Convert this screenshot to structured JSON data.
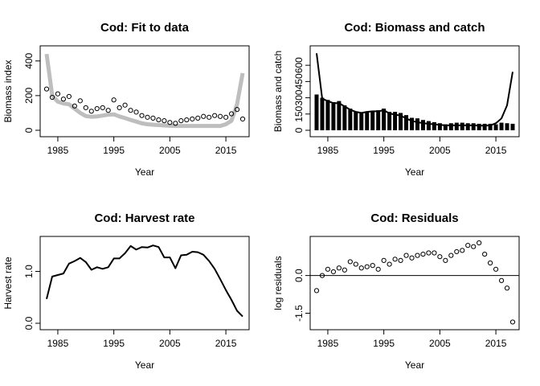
{
  "chart_data": [
    {
      "type": "scatter",
      "title": "Cod: Fit to data",
      "xlabel": "Year",
      "ylabel": "Biomass index",
      "xlim": [
        1983,
        2018
      ],
      "ylim": [
        0,
        450
      ],
      "xticks": [
        1985,
        1995,
        2005,
        2015
      ],
      "yticks": [
        0,
        200,
        400
      ],
      "points": {
        "x": [
          1983,
          1984,
          1985,
          1986,
          1987,
          1988,
          1989,
          1990,
          1991,
          1992,
          1993,
          1994,
          1995,
          1996,
          1997,
          1998,
          1999,
          2000,
          2001,
          2002,
          2003,
          2004,
          2005,
          2006,
          2007,
          2008,
          2009,
          2010,
          2011,
          2012,
          2013,
          2014,
          2015,
          2016,
          2017,
          2018
        ],
        "y": [
          238,
          190,
          210,
          180,
          195,
          140,
          170,
          130,
          110,
          125,
          130,
          115,
          175,
          130,
          145,
          115,
          105,
          85,
          75,
          70,
          60,
          55,
          45,
          40,
          55,
          60,
          65,
          70,
          80,
          75,
          85,
          80,
          75,
          95,
          120,
          65
        ]
      },
      "fit_line": {
        "x": [
          1983,
          1984,
          1985,
          1986,
          1987,
          1988,
          1989,
          1990,
          1991,
          1992,
          1993,
          1994,
          1995,
          1996,
          1997,
          1998,
          1999,
          2000,
          2001,
          2002,
          2003,
          2004,
          2005,
          2006,
          2007,
          2008,
          2009,
          2010,
          2011,
          2012,
          2013,
          2014,
          2015,
          2016,
          2017,
          2018
        ],
        "y": [
          440,
          200,
          165,
          155,
          150,
          125,
          100,
          82,
          78,
          80,
          85,
          90,
          92,
          80,
          70,
          60,
          50,
          40,
          35,
          32,
          30,
          28,
          26,
          25,
          25,
          25,
          25,
          25,
          25,
          25,
          25,
          25,
          35,
          55,
          150,
          330
        ]
      }
    },
    {
      "type": "bar",
      "title": "Cod: Biomass and catch",
      "xlabel": "Year",
      "ylabel": "Biomass and catch",
      "xlim": [
        1983,
        2018
      ],
      "ylim": [
        0,
        720
      ],
      "xticks": [
        1985,
        1995,
        2005,
        2015
      ],
      "yticks": [
        0,
        150,
        300,
        450,
        600
      ],
      "catch": {
        "x": [
          1983,
          1984,
          1985,
          1986,
          1987,
          1988,
          1989,
          1990,
          1991,
          1992,
          1993,
          1994,
          1995,
          1996,
          1997,
          1998,
          1999,
          2000,
          2001,
          2002,
          2003,
          2004,
          2005,
          2006,
          2007,
          2008,
          2009,
          2010,
          2011,
          2012,
          2013,
          2014,
          2015,
          2016,
          2017,
          2018
        ],
        "y": [
          330,
          300,
          280,
          260,
          270,
          230,
          200,
          175,
          165,
          175,
          180,
          185,
          200,
          170,
          170,
          160,
          140,
          115,
          110,
          95,
          85,
          75,
          65,
          55,
          65,
          70,
          70,
          65,
          65,
          60,
          60,
          60,
          55,
          70,
          65,
          60
        ]
      },
      "biomass": {
        "x": [
          1983,
          1984,
          1985,
          1986,
          1987,
          1988,
          1989,
          1990,
          1991,
          1992,
          1993,
          1994,
          1995,
          1996,
          1997,
          1998,
          1999,
          2000,
          2001,
          2002,
          2003,
          2004,
          2005,
          2006,
          2007,
          2008,
          2009,
          2010,
          2011,
          2012,
          2013,
          2014,
          2015,
          2016,
          2017,
          2018
        ],
        "y": [
          710,
          290,
          270,
          250,
          250,
          220,
          190,
          170,
          160,
          170,
          175,
          175,
          185,
          155,
          145,
          135,
          110,
          85,
          75,
          65,
          60,
          55,
          50,
          45,
          45,
          45,
          45,
          45,
          45,
          42,
          42,
          45,
          65,
          110,
          230,
          540
        ]
      }
    },
    {
      "type": "line",
      "title": "Cod: Harvest rate",
      "xlabel": "Year",
      "ylabel": "Harvest rate",
      "xlim": [
        1983,
        2018
      ],
      "ylim": [
        0,
        1.55
      ],
      "xticks": [
        1985,
        1995,
        2005,
        2015
      ],
      "yticks": [
        0.0,
        1.0
      ],
      "ytick_labels": [
        "0.0",
        "1.0"
      ],
      "x": [
        1983,
        1984,
        1985,
        1986,
        1987,
        1988,
        1989,
        1990,
        1991,
        1992,
        1993,
        1994,
        1995,
        1996,
        1997,
        1998,
        1999,
        2000,
        2001,
        2002,
        2003,
        2004,
        2005,
        2006,
        2007,
        2008,
        2009,
        2010,
        2011,
        2012,
        2013,
        2014,
        2015,
        2016,
        2017,
        2018
      ],
      "y": [
        0.47,
        0.9,
        0.93,
        0.96,
        1.15,
        1.2,
        1.26,
        1.18,
        1.03,
        1.08,
        1.05,
        1.08,
        1.25,
        1.25,
        1.35,
        1.49,
        1.42,
        1.47,
        1.46,
        1.5,
        1.47,
        1.27,
        1.27,
        1.06,
        1.31,
        1.32,
        1.38,
        1.37,
        1.32,
        1.2,
        1.05,
        0.85,
        0.64,
        0.45,
        0.24,
        0.13
      ]
    },
    {
      "type": "scatter",
      "title": "Cod: Residuals",
      "xlabel": "Year",
      "ylabel": "log residuals",
      "xlim": [
        1983,
        2018
      ],
      "ylim": [
        -1.9,
        1.3
      ],
      "xticks": [
        1985,
        1995,
        2005,
        2015
      ],
      "yticks": [
        -1.5,
        0.0
      ],
      "ytick_labels": [
        "-1.5",
        "0.0"
      ],
      "hline": 0,
      "x": [
        1983,
        1984,
        1985,
        1986,
        1987,
        1988,
        1989,
        1990,
        1991,
        1992,
        1993,
        1994,
        1995,
        1996,
        1997,
        1998,
        1999,
        2000,
        2001,
        2002,
        2003,
        2004,
        2005,
        2006,
        2007,
        2008,
        2009,
        2010,
        2011,
        2012,
        2013,
        2014,
        2015,
        2016,
        2017,
        2018
      ],
      "y": [
        -0.6,
        0.0,
        0.25,
        0.15,
        0.3,
        0.22,
        0.55,
        0.45,
        0.3,
        0.35,
        0.4,
        0.25,
        0.6,
        0.45,
        0.65,
        0.6,
        0.8,
        0.7,
        0.8,
        0.85,
        0.9,
        0.9,
        0.75,
        0.6,
        0.8,
        0.95,
        1.0,
        1.2,
        1.15,
        1.3,
        0.85,
        0.5,
        0.25,
        -0.2,
        -0.5,
        -1.85
      ]
    }
  ]
}
